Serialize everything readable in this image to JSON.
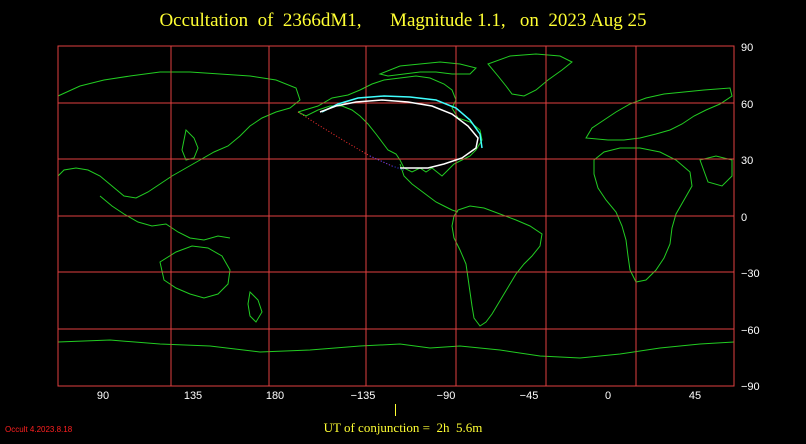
{
  "title": "Occultation  of  2366dM1,      Magnitude 1.1,   on  2023 Aug 25",
  "colors": {
    "background": "#000000",
    "grid": "#e04040",
    "coast": "#22cc22",
    "title_text": "#ffff33",
    "path_north": "#40ffff",
    "path_south": "#ffffff",
    "path_dots_red": "#ff3030",
    "path_dots_blue": "#4040ff",
    "version_text": "#ff2020"
  },
  "map": {
    "y_ticks": [
      "90",
      "60",
      "30",
      "0",
      "−30",
      "−60",
      "−90"
    ],
    "x_ticks": [
      "90",
      "135",
      "180",
      "−135",
      "−90",
      "−45",
      "0",
      "45"
    ],
    "latitude_lines": [
      60,
      30,
      0,
      -30,
      -60
    ],
    "longitude_lines": [
      135,
      180,
      -135,
      -90,
      -45,
      0
    ]
  },
  "footer": {
    "conjunction": "UT of conjunction =  2h  5.6m",
    "version": "Occult 4.2023.8.18"
  }
}
